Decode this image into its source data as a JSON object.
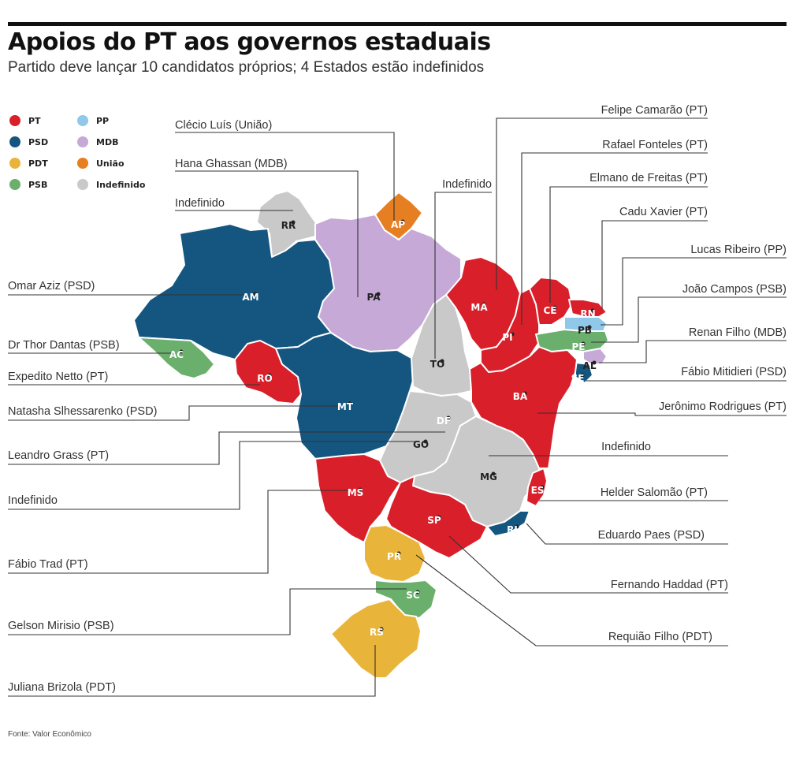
{
  "header": {
    "title": "Apoios do PT aos governos estaduais",
    "subtitle": "Partido deve lançar 10 candidatos próprios; 4 Estados estão indefinidos"
  },
  "colors": {
    "PT": "#d91f2a",
    "PSD": "#14567f",
    "PDT": "#e9b43a",
    "PSB": "#6aaf6c",
    "PP": "#8fc8e8",
    "MDB": "#c6a9d6",
    "União": "#e67e22",
    "Indefinido": "#c9c9c9"
  },
  "legend": [
    {
      "party": "PT",
      "label": "PT"
    },
    {
      "party": "PSD",
      "label": "PSD"
    },
    {
      "party": "PDT",
      "label": "PDT"
    },
    {
      "party": "PSB",
      "label": "PSB"
    },
    {
      "party": "PP",
      "label": "PP"
    },
    {
      "party": "MDB",
      "label": "MDB"
    },
    {
      "party": "União",
      "label": "União"
    },
    {
      "party": "Indefinido",
      "label": "Indefinido"
    }
  ],
  "states": [
    {
      "code": "RR",
      "party": "Indefinido",
      "callout": "Indefinido"
    },
    {
      "code": "AP",
      "party": "União",
      "callout": "Clécio Luís (União)"
    },
    {
      "code": "AM",
      "party": "PSD",
      "callout": "Omar Aziz (PSD)"
    },
    {
      "code": "PA",
      "party": "MDB",
      "callout": "Hana Ghassan (MDB)"
    },
    {
      "code": "AC",
      "party": "PSB",
      "callout": "Dr Thor Dantas (PSB)"
    },
    {
      "code": "RO",
      "party": "PT",
      "callout": "Expedito Netto (PT)"
    },
    {
      "code": "MT",
      "party": "PSD",
      "callout": "Natasha Slhessarenko (PSD)"
    },
    {
      "code": "TO",
      "party": "Indefinido",
      "callout": "Indefinido"
    },
    {
      "code": "MA",
      "party": "PT",
      "callout": "Felipe Camarão (PT)"
    },
    {
      "code": "PI",
      "party": "PT",
      "callout": "Rafael Fonteles (PT)"
    },
    {
      "code": "CE",
      "party": "PT",
      "callout": "Elmano de Freitas (PT)"
    },
    {
      "code": "RN",
      "party": "PT",
      "callout": "Cadu Xavier (PT)"
    },
    {
      "code": "PB",
      "party": "PP",
      "callout": "Lucas Ribeiro (PP)"
    },
    {
      "code": "PE",
      "party": "PSB",
      "callout": "João Campos (PSB)"
    },
    {
      "code": "AL",
      "party": "MDB",
      "callout": "Renan Filho (MDB)"
    },
    {
      "code": "SE",
      "party": "PSD",
      "callout": "Fábio Mitidieri (PSD)"
    },
    {
      "code": "BA",
      "party": "PT",
      "callout": "Jerônimo Rodrigues (PT)"
    },
    {
      "code": "DF",
      "party": "PT",
      "callout": "Leandro Grass (PT)"
    },
    {
      "code": "GO",
      "party": "Indefinido",
      "callout": "Indefinido"
    },
    {
      "code": "MG",
      "party": "Indefinido",
      "callout": "Indefinido"
    },
    {
      "code": "ES",
      "party": "PT",
      "callout": "Helder Salomão (PT)"
    },
    {
      "code": "RJ",
      "party": "PSD",
      "callout": "Eduardo Paes (PSD)"
    },
    {
      "code": "MS",
      "party": "PT",
      "callout": "Fábio Trad (PT)"
    },
    {
      "code": "SP",
      "party": "PT",
      "callout": "Fernando Haddad (PT)"
    },
    {
      "code": "PR",
      "party": "PDT",
      "callout": "Requião Filho (PDT)"
    },
    {
      "code": "SC",
      "party": "PSB",
      "callout": "Gelson Mirisio (PSB)"
    },
    {
      "code": "RS",
      "party": "PDT",
      "callout": "Juliana Brizola (PDT)"
    }
  ],
  "source": "Fonte: Valor Econômico"
}
